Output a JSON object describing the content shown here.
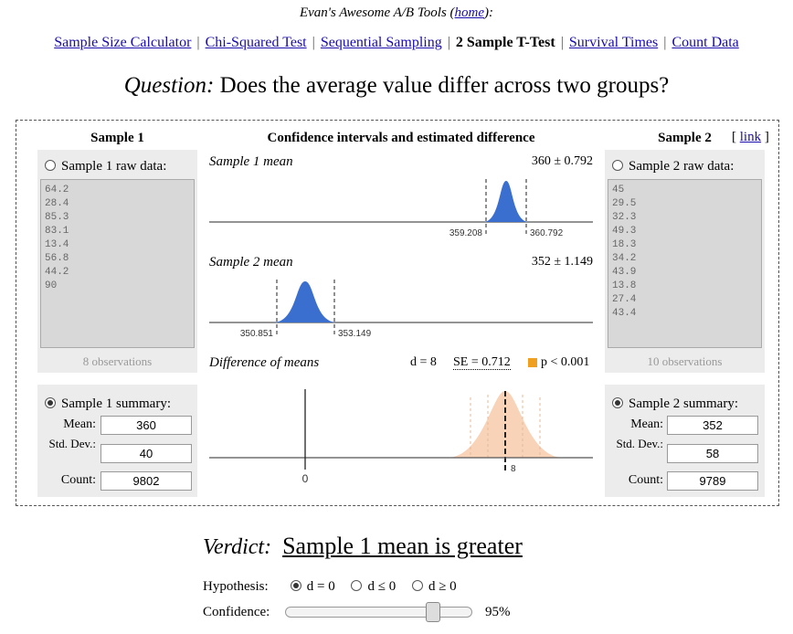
{
  "header": {
    "title_prefix": "Evan's Awesome A/B Tools (",
    "home_link": "home",
    "title_suffix": "):"
  },
  "nav": [
    {
      "label": "Sample Size Calculator",
      "current": false
    },
    {
      "label": "Chi-Squared Test",
      "current": false
    },
    {
      "label": "Sequential Sampling",
      "current": false
    },
    {
      "label": "2 Sample T-Test",
      "current": true
    },
    {
      "label": "Survival Times",
      "current": false
    },
    {
      "label": "Count Data",
      "current": false
    }
  ],
  "question": {
    "label": "Question:",
    "text": "Does the average value differ across two groups?"
  },
  "sample1": {
    "heading": "Sample 1",
    "raw_label": "Sample 1 raw data:",
    "raw_data": "64.2\n28.4\n85.3\n83.1\n13.4\n56.8\n44.2\n90",
    "observations": "8 observations",
    "summary_label": "Sample 1 summary:",
    "mean_label": "Mean:",
    "mean": "360",
    "sd_label": "Std. Dev.:",
    "sd": "40",
    "count_label": "Count:",
    "count": "9802",
    "mode": "summary"
  },
  "sample2": {
    "heading": "Sample 2",
    "link": "link",
    "raw_label": "Sample 2 raw data:",
    "raw_data": "45\n29.5\n32.3\n49.3\n18.3\n34.2\n43.9\n13.8\n27.4\n43.4",
    "observations": "10 observations",
    "summary_label": "Sample 2 summary:",
    "mean_label": "Mean:",
    "mean": "352",
    "sd_label": "Std. Dev.:",
    "sd": "58",
    "count_label": "Count:",
    "count": "9789",
    "mode": "summary"
  },
  "middle": {
    "heading": "Confidence intervals and estimated difference",
    "chart1": {
      "title": "Sample 1 mean",
      "value": "360 ± 0.792",
      "low": "359.208",
      "high": "360.792"
    },
    "chart2": {
      "title": "Sample 2 mean",
      "value": "352 ± 1.149",
      "low": "350.851",
      "high": "353.149"
    },
    "chart3": {
      "title": "Difference of means",
      "d": "d = 8",
      "se": "SE = 0.712",
      "p": "p < 0.001",
      "zero": "0",
      "d_tick": "8"
    }
  },
  "colors": {
    "blue_fill": "#3b6fcf",
    "peach_fill": "#f9d3b8",
    "orange_marker": "#f0a020",
    "link": "#1a0dab"
  },
  "verdict": {
    "label": "Verdict:",
    "text": "Sample 1 mean is greater"
  },
  "hypothesis": {
    "label": "Hypothesis:",
    "options": [
      "d = 0",
      "d ≤ 0",
      "d ≥ 0"
    ],
    "selected": 0
  },
  "confidence": {
    "label": "Confidence:",
    "value": "95%",
    "level": 0.95
  }
}
